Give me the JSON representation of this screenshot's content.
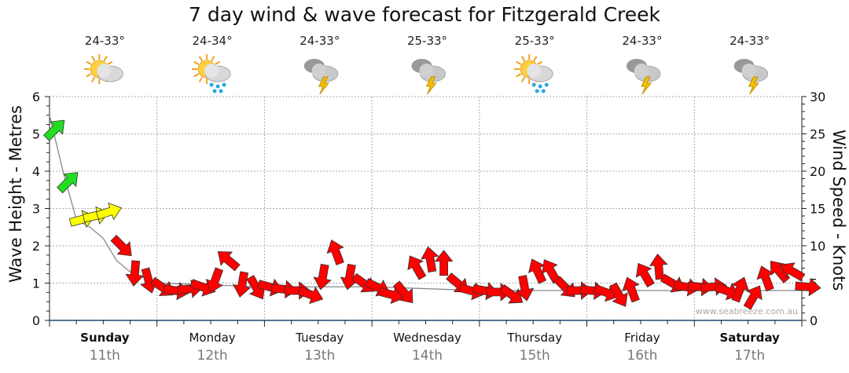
{
  "title": "7 day wind & wave forecast for Fitzgerald Creek",
  "days": [
    {
      "name": "Sunday",
      "date": "11th",
      "temp": "24-33°",
      "icon": "partly-cloudy-icon",
      "bold": true
    },
    {
      "name": "Monday",
      "date": "12th",
      "temp": "24-34°",
      "icon": "sun-rain-icon",
      "bold": false
    },
    {
      "name": "Tuesday",
      "date": "13th",
      "temp": "24-33°",
      "icon": "thunderstorm-icon",
      "bold": false
    },
    {
      "name": "Wednesday",
      "date": "14th",
      "temp": "25-33°",
      "icon": "thunderstorm-icon",
      "bold": false
    },
    {
      "name": "Thursday",
      "date": "15th",
      "temp": "25-33°",
      "icon": "sun-rain-icon",
      "bold": false
    },
    {
      "name": "Friday",
      "date": "16th",
      "temp": "24-33°",
      "icon": "thunderstorm-icon",
      "bold": false
    },
    {
      "name": "Saturday",
      "date": "17th",
      "temp": "24-33°",
      "icon": "thunderstorm-icon",
      "bold": true
    }
  ],
  "watermark": "www.seabreeze.com.au",
  "chart_data": {
    "type": "line",
    "title": "7 day wind & wave forecast for Fitzgerald Creek",
    "ylabel": "Wave Height - Metres",
    "y2label": "Wind Speed - Knots",
    "ylim": [
      0,
      6
    ],
    "y2lim": [
      0,
      30
    ],
    "yticks": [
      "0",
      "1",
      "2",
      "3",
      "4",
      "5",
      "6"
    ],
    "y2ticks": [
      "0",
      "5",
      "10",
      "15",
      "20",
      "25",
      "30"
    ],
    "x_unit": "hours from Sunday 00:00",
    "xlim": [
      0,
      168
    ],
    "wave_series": {
      "name": "Wave height (m)",
      "x": [
        0,
        3,
        6,
        9,
        12,
        15,
        18,
        24,
        48,
        72,
        96,
        120,
        144,
        168
      ],
      "values": [
        5.5,
        4.0,
        2.7,
        2.5,
        2.2,
        1.6,
        1.3,
        1.0,
        0.9,
        0.9,
        0.8,
        0.8,
        0.8,
        0.8
      ]
    },
    "wind_series": {
      "name": "Wind speed (kn) with heading (deg)",
      "step_hours": 3,
      "speed": [
        25.5,
        18.5,
        13.5,
        14,
        14.5,
        10,
        6.5,
        5.5,
        4.5,
        4,
        4.2,
        4.5,
        5.5,
        8,
        5,
        4.5,
        4.5,
        4.2,
        4,
        3.5,
        6,
        9,
        6,
        5,
        4.5,
        3.5,
        3.8,
        7,
        8,
        7.5,
        5,
        4,
        4,
        3.8,
        3.5,
        4.5,
        6.5,
        6.5,
        4.5,
        4,
        4,
        3.8,
        3.5,
        4,
        6,
        7,
        5,
        4.5,
        4.5,
        4.5,
        4,
        4,
        3,
        5.5,
        6.5,
        6.5,
        4.5
      ],
      "heading": [
        -45,
        -45,
        -15,
        -12,
        -18,
        45,
        95,
        75,
        35,
        10,
        -5,
        20,
        110,
        -140,
        100,
        60,
        15,
        5,
        0,
        20,
        100,
        -110,
        100,
        35,
        25,
        15,
        50,
        -120,
        -100,
        -90,
        40,
        15,
        10,
        0,
        35,
        80,
        -115,
        -120,
        45,
        0,
        5,
        20,
        60,
        -110,
        -120,
        -95,
        30,
        10,
        5,
        -5,
        20,
        -70,
        -60,
        -110,
        -130,
        -150,
        5
      ]
    },
    "colors": {
      "strong": "#22dd22",
      "moderate": "#ffff00",
      "light": "#ff0000",
      "wave": "#888888"
    }
  }
}
